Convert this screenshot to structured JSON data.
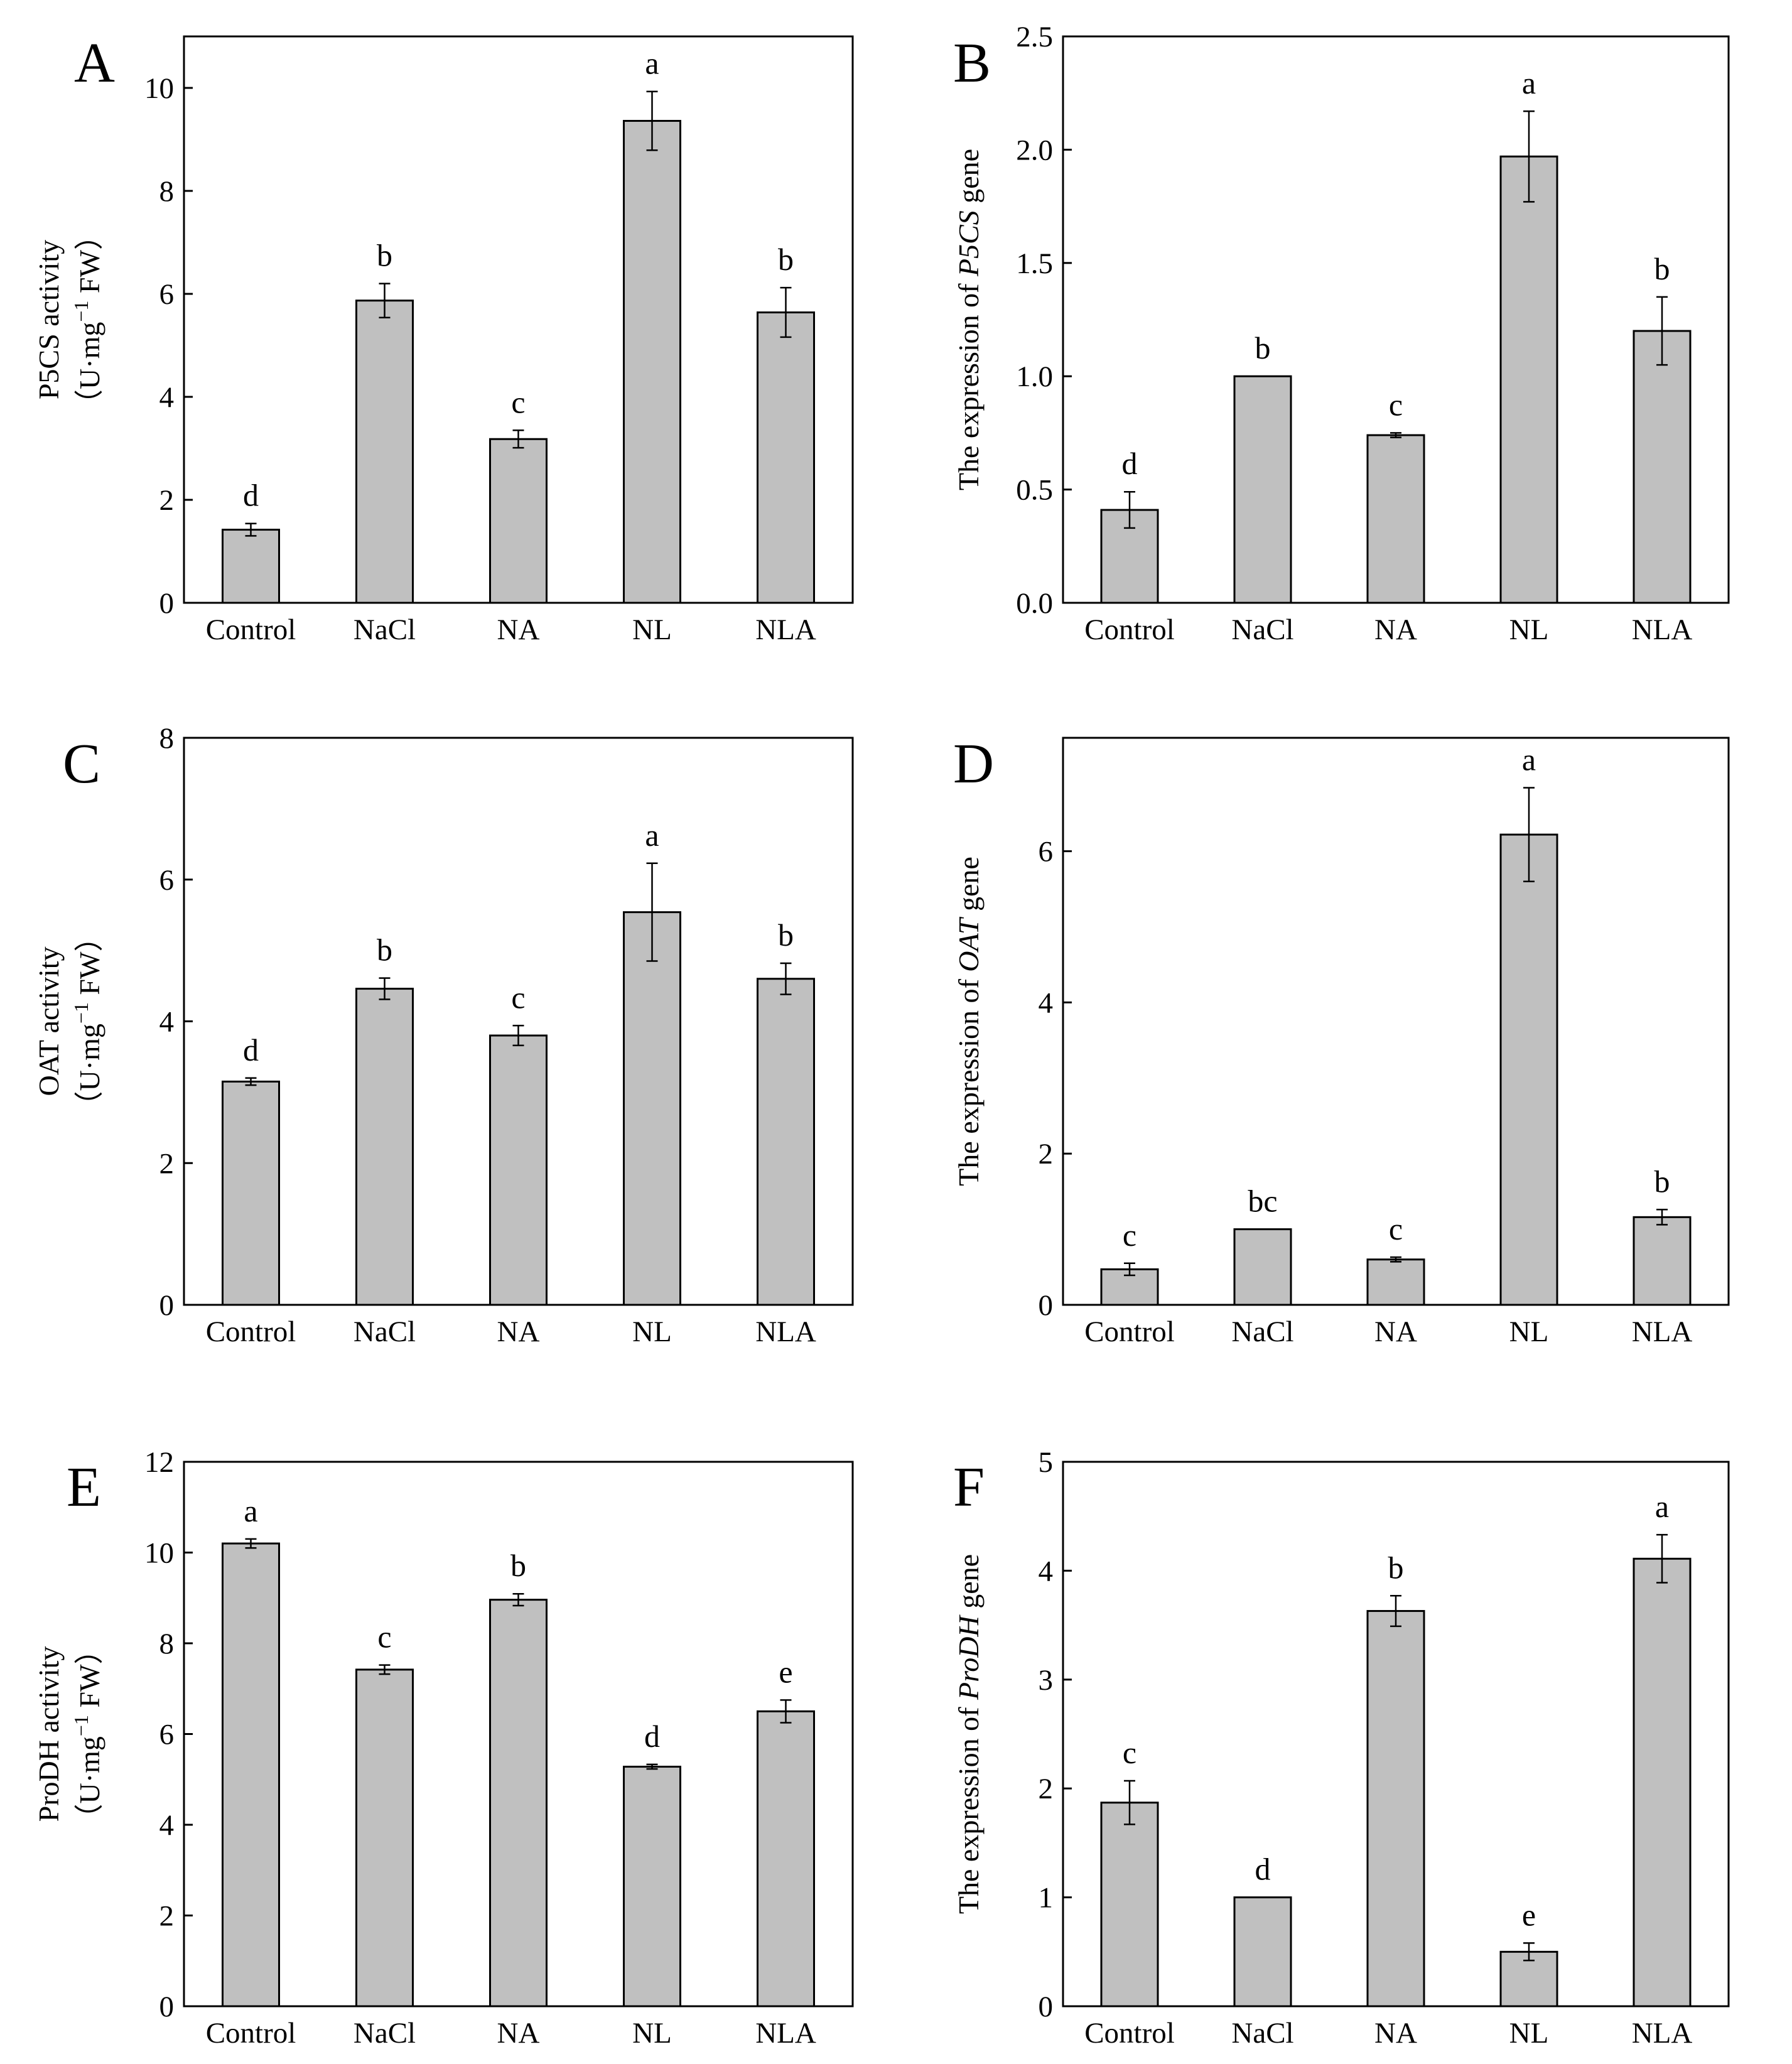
{
  "figure": {
    "panels_label": "six-panel bar chart figure",
    "bar_color": "#c0c0c0",
    "bar_stroke": "#000000",
    "axis_color": "#000000"
  },
  "chart_data": [
    {
      "panel": "A",
      "type": "bar",
      "categories": [
        "Control",
        "NaCl",
        "NA",
        "NL",
        "NLA"
      ],
      "values": [
        1.42,
        5.87,
        3.18,
        9.36,
        5.64
      ],
      "errors": [
        0.12,
        0.33,
        0.17,
        0.57,
        0.48
      ],
      "letters": [
        "d",
        "b",
        "c",
        "a",
        "b"
      ],
      "ylim": [
        0,
        11
      ],
      "yticks": [
        0,
        2,
        4,
        6,
        8,
        10
      ],
      "ytick_labels": [
        "0",
        "2",
        "4",
        "6",
        "8",
        "10"
      ],
      "ylabel_line1": "P5CS activity",
      "ylabel_line2_pre": "（U·mg",
      "ylabel_line2_sup": "−1",
      "ylabel_line2_post": " FW）"
    },
    {
      "panel": "B",
      "type": "bar",
      "categories": [
        "Control",
        "NaCl",
        "NA",
        "NL",
        "NLA"
      ],
      "values": [
        0.41,
        1.0,
        0.74,
        1.97,
        1.2
      ],
      "errors": [
        0.08,
        0.0,
        0.01,
        0.2,
        0.15
      ],
      "letters": [
        "d",
        "b",
        "c",
        "a",
        "b"
      ],
      "ylim": [
        0,
        2.5
      ],
      "yticks": [
        0,
        0.5,
        1.0,
        1.5,
        2.0,
        2.5
      ],
      "ytick_labels": [
        "0.0",
        "0.5",
        "1.0",
        "1.5",
        "2.0",
        "2.5"
      ],
      "ylabel_pre": "The expression of ",
      "ylabel_gene": "P5CS",
      "ylabel_post": " gene"
    },
    {
      "panel": "C",
      "type": "bar",
      "categories": [
        "Control",
        "NaCl",
        "NA",
        "NL",
        "NLA"
      ],
      "values": [
        3.15,
        4.46,
        3.8,
        5.54,
        4.6
      ],
      "errors": [
        0.05,
        0.15,
        0.14,
        0.69,
        0.22
      ],
      "letters": [
        "d",
        "b",
        "c",
        "a",
        "b"
      ],
      "ylim": [
        0,
        8
      ],
      "yticks": [
        0,
        2,
        4,
        6,
        8
      ],
      "ytick_labels": [
        "0",
        "2",
        "4",
        "6",
        "8"
      ],
      "ylabel_line1": "OAT activity",
      "ylabel_line2_pre": "（U·mg",
      "ylabel_line2_sup": "−1",
      "ylabel_line2_post": " FW）"
    },
    {
      "panel": "D",
      "type": "bar",
      "categories": [
        "Control",
        "NaCl",
        "NA",
        "NL",
        "NLA"
      ],
      "values": [
        0.47,
        1.0,
        0.6,
        6.22,
        1.16
      ],
      "errors": [
        0.08,
        0.0,
        0.03,
        0.62,
        0.1
      ],
      "letters": [
        "c",
        "bc",
        "c",
        "a",
        "b"
      ],
      "ylim": [
        0,
        7.5
      ],
      "yticks": [
        0,
        2,
        4,
        6
      ],
      "ytick_labels": [
        "0",
        "2",
        "4",
        "6"
      ],
      "ylabel_pre": "The expression of ",
      "ylabel_gene": "OAT",
      "ylabel_post": " gene"
    },
    {
      "panel": "E",
      "type": "bar",
      "categories": [
        "Control",
        "NaCl",
        "NA",
        "NL",
        "NLA"
      ],
      "values": [
        10.2,
        7.42,
        8.96,
        5.28,
        6.5
      ],
      "errors": [
        0.1,
        0.1,
        0.13,
        0.05,
        0.25
      ],
      "letters": [
        "a",
        "c",
        "b",
        "d",
        "e"
      ],
      "ylim": [
        0,
        12
      ],
      "yticks": [
        0,
        2,
        4,
        6,
        8,
        10,
        12
      ],
      "ytick_labels": [
        "0",
        "2",
        "4",
        "6",
        "8",
        "10",
        "12"
      ],
      "ylabel_line1": "ProDH activity",
      "ylabel_line2_pre": "（U·mg",
      "ylabel_line2_sup": "−1",
      "ylabel_line2_post": " FW）"
    },
    {
      "panel": "F",
      "type": "bar",
      "categories": [
        "Control",
        "NaCl",
        "NA",
        "NL",
        "NLA"
      ],
      "values": [
        1.87,
        1.0,
        3.63,
        0.5,
        4.11
      ],
      "errors": [
        0.2,
        0.0,
        0.14,
        0.08,
        0.22
      ],
      "letters": [
        "c",
        "d",
        "b",
        "e",
        "a"
      ],
      "ylim": [
        0,
        5
      ],
      "yticks": [
        0,
        1,
        2,
        3,
        4,
        5
      ],
      "ytick_labels": [
        "0",
        "1",
        "2",
        "3",
        "4",
        "5"
      ],
      "ylabel_pre": "The expression of ",
      "ylabel_gene": "ProDH",
      "ylabel_post": " gene"
    }
  ]
}
